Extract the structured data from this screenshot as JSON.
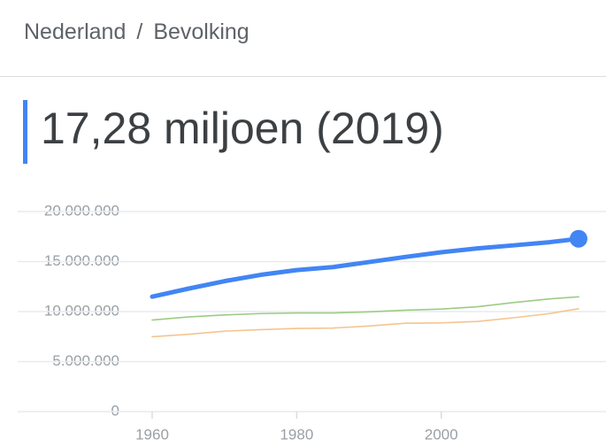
{
  "header": {
    "breadcrumb": [
      "Nederland",
      "Bevolking"
    ],
    "separator": "/"
  },
  "headline": "17,28 miljoen (2019)",
  "chart_data": {
    "type": "line",
    "x": [
      1960,
      1965,
      1970,
      1975,
      1980,
      1985,
      1990,
      1995,
      2000,
      2005,
      2010,
      2015,
      2019
    ],
    "series": [
      {
        "color": "#4285f4",
        "highlight": true,
        "values": [
          11490000,
          12290000,
          13040000,
          13670000,
          14150000,
          14450000,
          14950000,
          15460000,
          15930000,
          16320000,
          16620000,
          16940000,
          17280000
        ]
      },
      {
        "color": "#9ccc84",
        "values": [
          9150000,
          9460000,
          9660000,
          9800000,
          9860000,
          9860000,
          9970000,
          10140000,
          10250000,
          10480000,
          10900000,
          11270000,
          11480000
        ]
      },
      {
        "color": "#f5c48f",
        "values": [
          7480000,
          7730000,
          8040000,
          8190000,
          8310000,
          8350000,
          8560000,
          8830000,
          8870000,
          9010000,
          9380000,
          9800000,
          10280000
        ]
      }
    ],
    "xlim": [
      1960,
      2019
    ],
    "xticks": [
      1960,
      1980,
      2000
    ],
    "ylim": [
      0,
      20000000
    ],
    "yticks": [
      0,
      {
        "value": 5000000,
        "label": "5.000.000"
      },
      {
        "value": 10000000,
        "label": "10.000.000"
      },
      {
        "value": 15000000,
        "label": "15.000.000"
      },
      {
        "value": 20000000,
        "label": "20.000.000"
      }
    ],
    "grid": true
  }
}
